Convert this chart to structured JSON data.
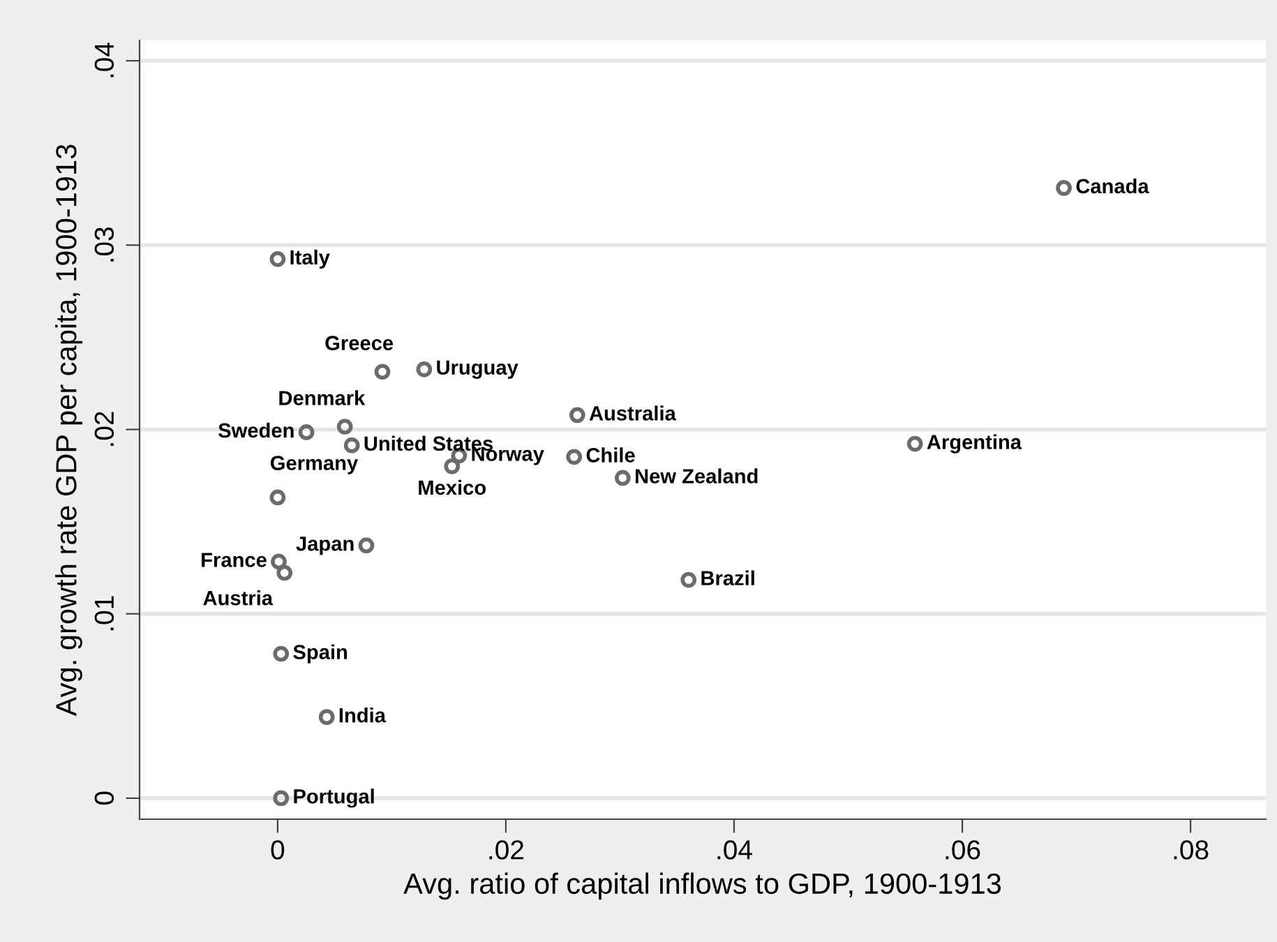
{
  "chart_data": {
    "type": "scatter",
    "xlabel": "Avg. ratio of capital inflows to GDP, 1900-1913",
    "ylabel": "Avg. growth rate GDP per capita, 1900-1913",
    "series": [
      {
        "color": "#6b6b6b",
        "x": [
          0.0689,
          0.0,
          0.00918,
          0.01284,
          0.02626,
          0.00589,
          0.00252,
          0.0065,
          0.05585,
          0.0159,
          0.01528,
          0.02598,
          0.03024,
          0.0,
          0.00777,
          0.0001,
          0.0006,
          0.03601,
          0.0003,
          0.0043,
          0.0003
        ],
        "values": [
          0.0331,
          0.02924,
          0.02313,
          0.02326,
          0.02078,
          0.02015,
          0.01985,
          0.01914,
          0.01922,
          0.01858,
          0.018,
          0.01851,
          0.01737,
          0.01631,
          0.01371,
          0.01283,
          0.01222,
          0.01184,
          0.00783,
          0.0044,
          0.0
        ]
      }
    ],
    "annotations": [
      {
        "text": "Canada",
        "x": 0.0689,
        "y": 0.0331
      },
      {
        "text": "Italy",
        "x": 0.0,
        "y": 0.02924
      },
      {
        "text": "Greece",
        "x": 0.00918,
        "y": 0.02313
      },
      {
        "text": "Uruguay",
        "x": 0.01284,
        "y": 0.02326
      },
      {
        "text": "Australia",
        "x": 0.02626,
        "y": 0.02078
      },
      {
        "text": "Denmark",
        "x": 0.00589,
        "y": 0.02015
      },
      {
        "text": "Sweden",
        "x": 0.00252,
        "y": 0.01985
      },
      {
        "text": "United States",
        "x": 0.0065,
        "y": 0.01914
      },
      {
        "text": "Argentina",
        "x": 0.05585,
        "y": 0.01922
      },
      {
        "text": "Norway",
        "x": 0.0159,
        "y": 0.01858
      },
      {
        "text": "Mexico",
        "x": 0.01528,
        "y": 0.018
      },
      {
        "text": "Chile",
        "x": 0.02598,
        "y": 0.01851
      },
      {
        "text": "New Zealand",
        "x": 0.03024,
        "y": 0.01737
      },
      {
        "text": "Germany",
        "x": 0.0,
        "y": 0.01631
      },
      {
        "text": "Japan",
        "x": 0.00777,
        "y": 0.01371
      },
      {
        "text": "France",
        "x": 0.0001,
        "y": 0.01283
      },
      {
        "text": "Austria",
        "x": 0.0006,
        "y": 0.01222
      },
      {
        "text": "Brazil",
        "x": 0.03601,
        "y": 0.01184
      },
      {
        "text": "Spain",
        "x": 0.0003,
        "y": 0.00783
      },
      {
        "text": "India",
        "x": 0.0043,
        "y": 0.0044
      },
      {
        "text": "Portugal",
        "x": 0.0003,
        "y": 0.0
      }
    ],
    "xlim": [
      -0.0121,
      0.0866
    ],
    "xticks": [
      {
        "value": 0,
        "label": "0"
      },
      {
        "value": 0.02,
        "label": ".02"
      },
      {
        "value": 0.04,
        "label": ".04"
      },
      {
        "value": 0.06,
        "label": ".06"
      },
      {
        "value": 0.08,
        "label": ".08"
      }
    ],
    "ylim": [
      -0.00114,
      0.0411
    ],
    "yticks": [
      {
        "value": 0,
        "label": "0"
      },
      {
        "value": 0.01,
        "label": ".01"
      },
      {
        "value": 0.02,
        "label": ".02"
      },
      {
        "value": 0.03,
        "label": ".03"
      },
      {
        "value": 0.04,
        "label": ".04"
      }
    ],
    "grid": "y",
    "marker": "circle",
    "legend": false
  }
}
